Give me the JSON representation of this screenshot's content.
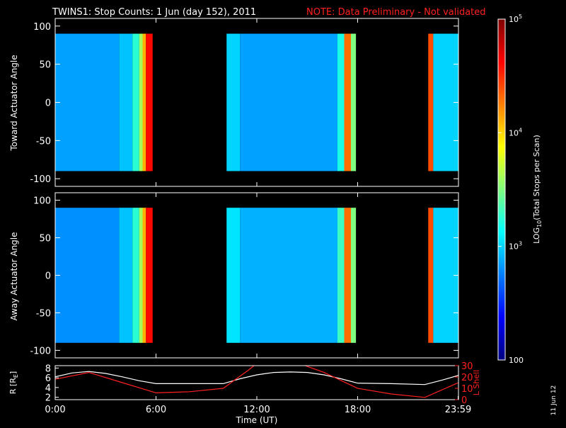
{
  "header": {
    "title": "TWINS1: Stop Counts:  1 Jun (day 152), 2011",
    "note": "NOTE: Data Preliminary - Not validated"
  },
  "side_label": "11 Jun 12",
  "colors": {
    "axes": "#ffffff",
    "background": "#000000",
    "note": "#ff2020",
    "r_line": "#ffffff",
    "lshell_line": "#ff2020"
  },
  "colorbar": {
    "label_main": "LOG",
    "label_sub": "10",
    "label_rest": "(Total Stops per Scan)",
    "scale": "log",
    "range": [
      100,
      100000
    ],
    "ticks": [
      {
        "value": 100,
        "label": "100"
      },
      {
        "value": 1000,
        "label": "10",
        "sup": "3"
      },
      {
        "value": 10000,
        "label": "10",
        "sup": "4"
      },
      {
        "value": 100000,
        "label": "10",
        "sup": "5"
      }
    ],
    "colormap": [
      "#00007f",
      "#0000ff",
      "#007fff",
      "#00ffff",
      "#7fff7f",
      "#ffff00",
      "#ff7f00",
      "#ff0000",
      "#7f0000"
    ]
  },
  "chart_data": [
    {
      "type": "heatmap",
      "id": "toward",
      "ylabel": "Toward Actuator Angle",
      "ylim": [
        -110,
        110
      ],
      "yticks": [
        -100,
        -50,
        0,
        50,
        100
      ],
      "xlim": [
        0,
        24
      ],
      "data_range_y": [
        -90,
        90
      ],
      "bands": [
        {
          "start": 0.0,
          "end": 3.8,
          "log_value": 2.85
        },
        {
          "start": 3.8,
          "end": 4.6,
          "log_value": 2.95
        },
        {
          "start": 4.6,
          "end": 5.0,
          "log_value": 3.25
        },
        {
          "start": 5.0,
          "end": 5.2,
          "log_value": 3.6
        },
        {
          "start": 5.2,
          "end": 5.4,
          "log_value": 4.1
        },
        {
          "start": 5.4,
          "end": 5.8,
          "log_value": 4.6
        },
        {
          "start": 10.2,
          "end": 11.0,
          "log_value": 3.0
        },
        {
          "start": 11.0,
          "end": 16.8,
          "log_value": 2.85
        },
        {
          "start": 16.8,
          "end": 17.2,
          "log_value": 3.2
        },
        {
          "start": 17.2,
          "end": 17.6,
          "log_value": 4.3
        },
        {
          "start": 17.6,
          "end": 17.9,
          "log_value": 3.5
        },
        {
          "start": 22.2,
          "end": 22.5,
          "log_value": 4.4
        },
        {
          "start": 22.5,
          "end": 24.0,
          "log_value": 3.0
        }
      ]
    },
    {
      "type": "heatmap",
      "id": "away",
      "ylabel": "Away Actuator Angle",
      "ylim": [
        -110,
        110
      ],
      "yticks": [
        -100,
        -50,
        0,
        50,
        100
      ],
      "xlim": [
        0,
        24
      ],
      "data_range_y": [
        -90,
        90
      ],
      "bands": [
        {
          "start": 0.0,
          "end": 3.8,
          "log_value": 2.8
        },
        {
          "start": 3.8,
          "end": 4.6,
          "log_value": 2.95
        },
        {
          "start": 4.6,
          "end": 5.0,
          "log_value": 3.25
        },
        {
          "start": 5.0,
          "end": 5.2,
          "log_value": 3.6
        },
        {
          "start": 5.2,
          "end": 5.4,
          "log_value": 4.1
        },
        {
          "start": 5.4,
          "end": 5.8,
          "log_value": 4.6
        },
        {
          "start": 10.2,
          "end": 11.0,
          "log_value": 3.05
        },
        {
          "start": 11.0,
          "end": 16.8,
          "log_value": 2.9
        },
        {
          "start": 16.8,
          "end": 17.2,
          "log_value": 3.3
        },
        {
          "start": 17.2,
          "end": 17.6,
          "log_value": 4.3
        },
        {
          "start": 17.6,
          "end": 17.9,
          "log_value": 3.5
        },
        {
          "start": 22.2,
          "end": 22.5,
          "log_value": 4.4
        },
        {
          "start": 22.5,
          "end": 24.0,
          "log_value": 3.0
        }
      ]
    },
    {
      "type": "line",
      "id": "orbit",
      "ylabel_left": "R [R",
      "ylabel_left_sub": "E",
      "ylabel_left_end": "]",
      "ylabel_right": "L Shell",
      "ylim_left": [
        1.5,
        8.5
      ],
      "yticks_left": [
        2,
        4,
        6,
        8
      ],
      "ylim_right": [
        0,
        30
      ],
      "yticks_right": [
        0,
        10,
        20,
        30
      ],
      "xlim": [
        0,
        24
      ],
      "xlabel": "Time (UT)",
      "xticks": [
        {
          "value": 0,
          "label": "0:00"
        },
        {
          "value": 6,
          "label": "6:00"
        },
        {
          "value": 12,
          "label": "12:00"
        },
        {
          "value": 18,
          "label": "18:00"
        },
        {
          "value": 23.98,
          "label": "23:59"
        }
      ],
      "series": [
        {
          "axis": "left",
          "x": [
            0,
            1,
            2,
            3,
            4,
            5,
            6,
            8,
            10,
            11,
            12,
            13,
            14,
            15,
            16,
            17,
            18,
            20,
            22,
            23,
            24
          ],
          "y": [
            6.2,
            7.0,
            7.3,
            6.9,
            6.2,
            5.4,
            4.8,
            4.8,
            4.8,
            5.8,
            6.6,
            7.1,
            7.2,
            7.1,
            6.6,
            5.8,
            4.9,
            4.8,
            4.6,
            5.5,
            6.5
          ]
        },
        {
          "axis": "right",
          "x": [
            0,
            2,
            4,
            6,
            8,
            10,
            11.5,
            12,
            14.5,
            16,
            18,
            20,
            22,
            24
          ],
          "y": [
            18,
            24,
            15,
            6,
            7,
            10,
            26,
            32,
            32,
            24,
            10,
            5,
            2,
            15
          ]
        }
      ]
    }
  ]
}
